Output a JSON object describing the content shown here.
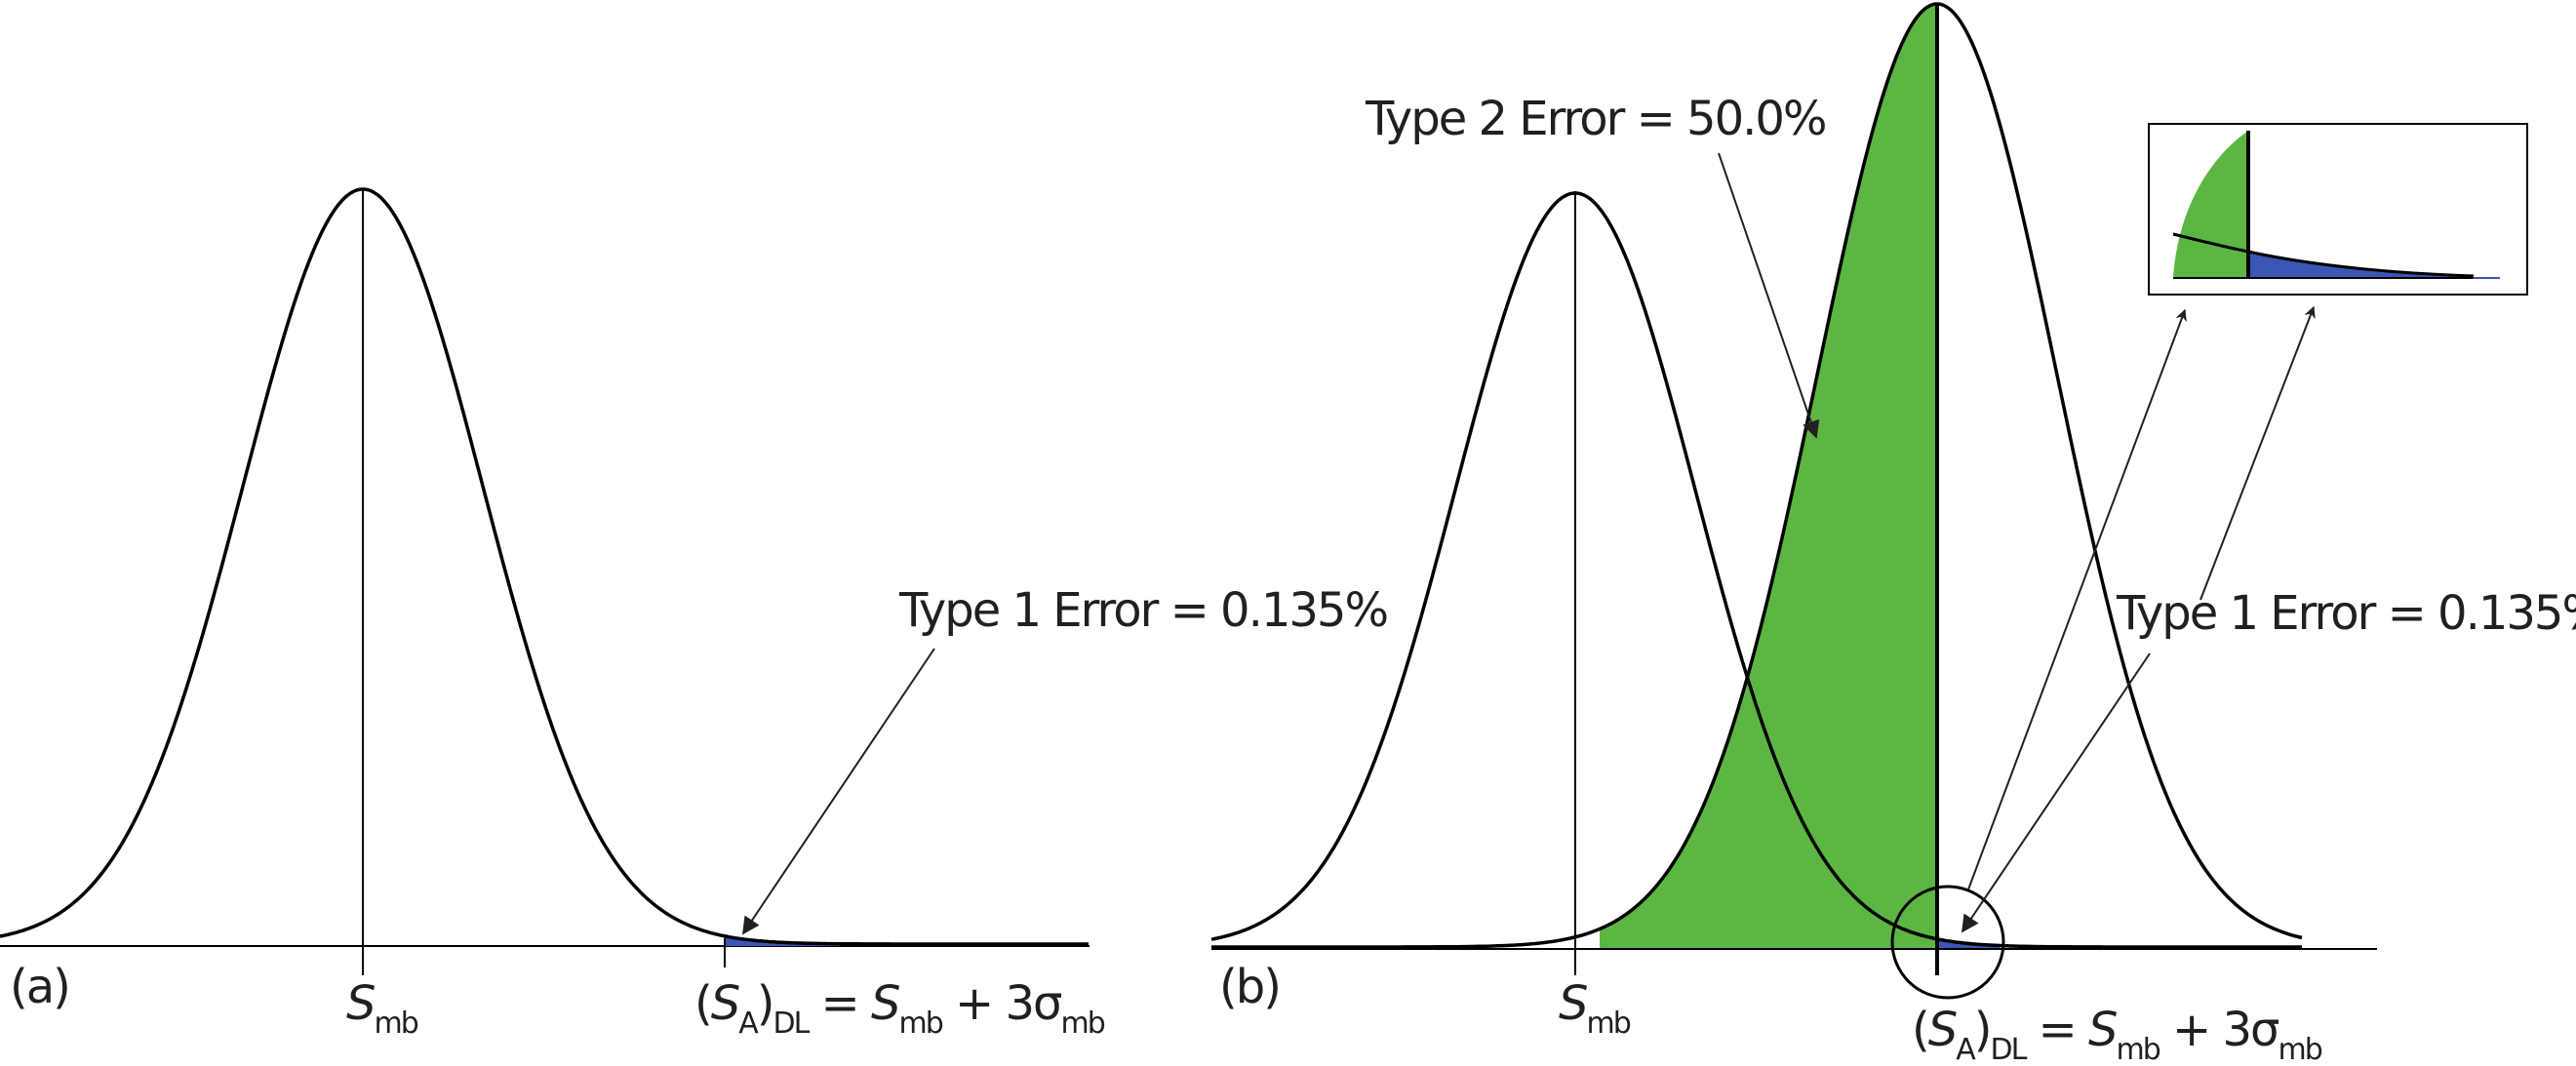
{
  "panel_a": {
    "tag": "(a)",
    "mean_label": {
      "main": "S",
      "sub": "mb"
    },
    "threshold_label": {
      "p_open": "(",
      "s": "S",
      "a_sub": "A",
      "p_close": ")",
      "dl_sub": "DL",
      "eq": " = ",
      "s2": "S",
      "mb_sub": "mb",
      "plus": " + 3σ",
      "mb_sub2": "mb"
    },
    "annotation": "Type 1 Error = 0.135%"
  },
  "panel_b": {
    "tag": "(b)",
    "mean_label": {
      "main": "S",
      "sub": "mb"
    },
    "threshold_label": {
      "p_open": "(",
      "s": "S",
      "a_sub": "A",
      "p_close": ")",
      "dl_sub": "DL",
      "eq": " = ",
      "s2": "S",
      "mb_sub": "mb",
      "plus": " + 3σ",
      "mb_sub2": "mb"
    },
    "annotation_type1": "Type 1 Error = 0.135%",
    "annotation_type2": "Type 2 Error = 50.0%"
  },
  "colors": {
    "type1_fill": "#3a57b5",
    "type2_fill": "#5db643",
    "curve": "#000000"
  }
}
